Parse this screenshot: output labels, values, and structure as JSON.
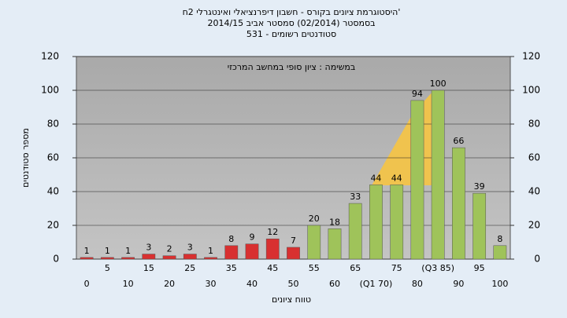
{
  "chart_data": {
    "type": "bar",
    "title": [
      "היסטוגרמת ציונים בקורס - חשבון דיפרנציאלי ואינטגרלי 2ח'",
      "בסמסטר  (02/2014)  סמסטר אביב 2014/15",
      "סטודנטים רשומים - 531"
    ],
    "annotation": "במשימה : ציון סופי במחשב המרכזי",
    "y_label": "מספר סטודנטים",
    "x_label": "טווח ציונים",
    "categories": [
      "0",
      "5",
      "10",
      "15",
      "20",
      "25",
      "30",
      "35",
      "40",
      "45",
      "50",
      "55",
      "60",
      "65",
      "(Q1 70)",
      "75",
      "80",
      "(Q3 85)",
      "90",
      "95",
      "100"
    ],
    "values": [
      1,
      1,
      1,
      3,
      2,
      3,
      1,
      8,
      9,
      12,
      7,
      20,
      18,
      33,
      44,
      44,
      94,
      100,
      66,
      39,
      8
    ],
    "colors": [
      "#d83030",
      "#d83030",
      "#d83030",
      "#d83030",
      "#d83030",
      "#d83030",
      "#d83030",
      "#d83030",
      "#d83030",
      "#d83030",
      "#d83030",
      "#9fc35a",
      "#9fc35a",
      "#9fc35a",
      "#9fc35a",
      "#9fc35a",
      "#9fc35a",
      "#9fc35a",
      "#9fc35a",
      "#9fc35a",
      "#9fc35a"
    ],
    "ylim": [
      0,
      120
    ],
    "yticks": [
      0,
      20,
      40,
      60,
      80,
      100,
      120
    ],
    "y2lim": [
      0,
      120
    ],
    "y2ticks": [
      0,
      20,
      40,
      60,
      80,
      100,
      120
    ],
    "grid": true
  }
}
